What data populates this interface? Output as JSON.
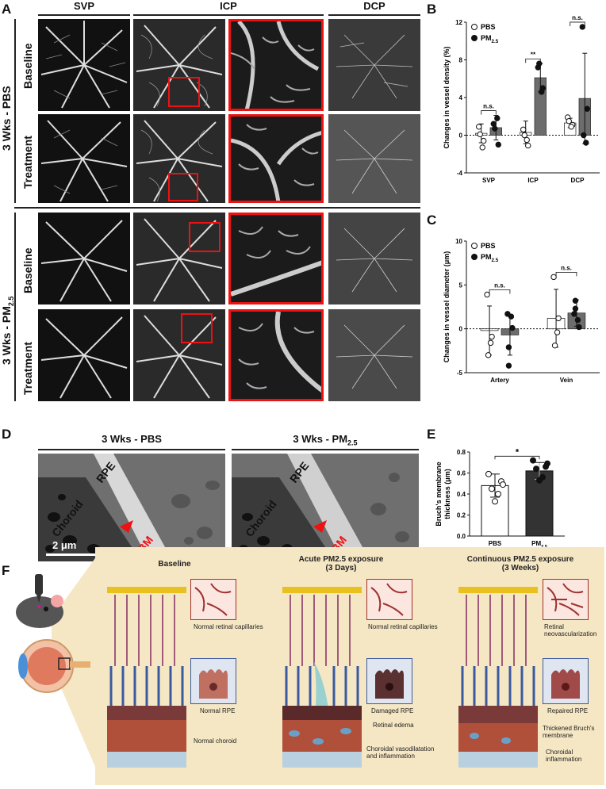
{
  "panels": {
    "A": "A",
    "B": "B",
    "C": "C",
    "D": "D",
    "E": "E",
    "F": "F"
  },
  "panelA": {
    "columns": [
      "SVP",
      "ICP",
      "DCP"
    ],
    "group1": "3 Wks - PBS",
    "group2_prefix": "3 Wks - PM",
    "group2_sub": "2.5",
    "rows": [
      "Baseline",
      "Treatment",
      "Baseline",
      "Treatment"
    ]
  },
  "panelD": {
    "title_left": "3 Wks - PBS",
    "title_right_prefix": "3 Wks - PM",
    "title_right_sub": "2.5",
    "labels": {
      "choroid": "Choroid",
      "rpe": "RPE",
      "bm": "BM"
    },
    "scale": "2 μm"
  },
  "chart_data": [
    {
      "type": "bar",
      "panel": "B",
      "ylabel": "Changes in vessel density (%)",
      "categories": [
        "SVP",
        "ICP",
        "DCP"
      ],
      "ylim": [
        -4,
        12
      ],
      "yticks": [
        -4,
        0,
        4,
        8,
        12
      ],
      "series": [
        {
          "name": "PBS",
          "values": [
            0.2,
            0.3,
            1.3
          ],
          "error": [
            1.0,
            1.2,
            0.5
          ],
          "points": [
            [
              0.9,
              -0.6,
              0.1,
              -1.3
            ],
            [
              0.6,
              -1.1,
              0.0,
              -0.5
            ],
            [
              1.9,
              1.1,
              1.5,
              0.9
            ]
          ]
        },
        {
          "name": "PM2.5",
          "values": [
            0.8,
            6.1,
            3.9
          ],
          "error": [
            1.3,
            1.5,
            4.8
          ],
          "points": [
            [
              1.2,
              -1.0,
              0.7,
              1.8
            ],
            [
              7.2,
              5.0,
              7.6,
              4.6
            ],
            [
              11.5,
              2.8,
              0.0,
              -0.8
            ]
          ]
        }
      ],
      "significance": [
        "n.s.",
        "**",
        "n.s."
      ]
    },
    {
      "type": "bar",
      "panel": "C",
      "ylabel": "Changes in vessel diameter (μm)",
      "categories": [
        "Artery",
        "Vein"
      ],
      "ylim": [
        -5,
        10
      ],
      "yticks": [
        -5,
        0,
        5,
        10
      ],
      "series": [
        {
          "name": "PBS",
          "values": [
            -0.2,
            1.2
          ],
          "error": [
            2.8,
            3.3
          ],
          "points": [
            [
              3.9,
              -0.9,
              -3.0,
              -1.6
            ],
            [
              5.9,
              1.2,
              -1.9,
              -0.4
            ]
          ]
        },
        {
          "name": "PM2.5",
          "values": [
            -0.7,
            1.8
          ],
          "error": [
            2.3,
            1.5
          ],
          "points": [
            [
              1.7,
              0.1,
              -2.1,
              1.4,
              -4.2
            ],
            [
              1.7,
              0.2,
              2.3,
              1.0,
              3.2
            ]
          ]
        }
      ],
      "significance": [
        "n.s.",
        "n.s."
      ]
    },
    {
      "type": "bar",
      "panel": "E",
      "ylabel": "Bruch's membrane thickness (μm)",
      "categories": [
        "PBS",
        "PM2.5"
      ],
      "ylim": [
        0.0,
        0.8
      ],
      "yticks": [
        0.0,
        0.2,
        0.4,
        0.6,
        0.8
      ],
      "values": [
        0.48,
        0.62
      ],
      "error": [
        0.11,
        0.08
      ],
      "points": [
        [
          0.59,
          0.52,
          0.45,
          0.4,
          0.33,
          0.49
        ],
        [
          0.72,
          0.66,
          0.64,
          0.56,
          0.53,
          0.69
        ]
      ],
      "significance": "*"
    }
  ],
  "legend": {
    "pbs": "PBS",
    "pm_prefix": "PM",
    "pm_sub": "2.5"
  },
  "panelF": {
    "titles": [
      "Baseline",
      "Acute PM2.5 exposure",
      "Continuous PM2.5 exposure"
    ],
    "subtitles": [
      "",
      "(3 Days)",
      "(3 Weeks)"
    ],
    "captions": [
      [
        "Normal retinal capillaries",
        "Normal RPE",
        "Normal choroid"
      ],
      [
        "Normal retinal capillaries",
        "Damaged RPE",
        "Retinal edema",
        "Choroidal vasodilatation and inflammation"
      ],
      [
        "Retinal neovascularization",
        "Repaired RPE",
        "Thickened Bruch's membrane",
        "Choroidal inflammation"
      ]
    ]
  }
}
